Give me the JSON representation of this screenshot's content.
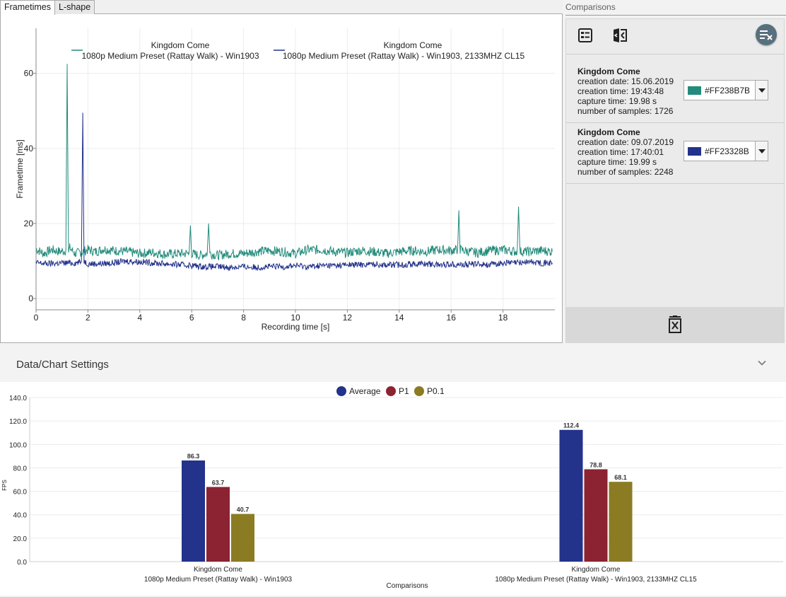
{
  "tabs": [
    {
      "label": "Frametimes",
      "active": true
    },
    {
      "label": "L-shape",
      "active": false
    }
  ],
  "comparisons_panel": {
    "title": "Comparisons",
    "entries": [
      {
        "name": "Kingdom Come",
        "creation_date": "creation date: 15.06.2019",
        "creation_time": "creation time: 19:43:48",
        "capture_time": "capture time: 19.98 s",
        "number_of_samples": "number of samples: 1726",
        "color_label": "#FF238B7B",
        "color_hex": "#238B7B"
      },
      {
        "name": "Kingdom Come",
        "creation_date": "creation date: 09.07.2019",
        "creation_time": "creation time: 17:40:01",
        "capture_time": "capture time: 19.99 s",
        "number_of_samples": "number of samples: 2248",
        "color_label": "#FF23328B",
        "color_hex": "#23328B"
      }
    ]
  },
  "settings": {
    "title": "Data/Chart Settings"
  },
  "chart_data": [
    {
      "type": "line",
      "xlabel": "Recording time [s]",
      "ylabel": "Frametime [ms]",
      "xlim": [
        0,
        20
      ],
      "ylim": [
        -3,
        72
      ],
      "xticks": [
        0,
        2,
        4,
        6,
        8,
        10,
        12,
        14,
        16,
        18
      ],
      "yticks": [
        0,
        20,
        40,
        60
      ],
      "grid": true,
      "legend_position": "top",
      "series": [
        {
          "name": "Kingdom Come",
          "subtitle": "1080p Medium Preset (Rattay Walk) - Win1903",
          "color": "#238B7B",
          "x": [
            0,
            0.3,
            0.6,
            0.9,
            1.15,
            1.2,
            1.25,
            1.3,
            1.5,
            1.8,
            2.0,
            2.3,
            2.6,
            3.0,
            3.5,
            4.0,
            4.5,
            5.0,
            5.5,
            5.9,
            5.95,
            6.0,
            6.3,
            6.6,
            6.65,
            6.7,
            7.0,
            7.5,
            8.0,
            8.5,
            9.0,
            9.5,
            10.0,
            10.5,
            11.0,
            11.5,
            12.0,
            12.5,
            13.0,
            13.5,
            14.0,
            14.5,
            15.0,
            15.5,
            16.0,
            16.25,
            16.3,
            16.35,
            16.7,
            17.0,
            17.5,
            18.0,
            18.5,
            18.55,
            18.6,
            18.65,
            19.0,
            19.5,
            19.9
          ],
          "values": [
            13.2,
            12.0,
            13.0,
            12.5,
            12.8,
            62.5,
            12.5,
            13.5,
            12.0,
            12.5,
            13.0,
            12.5,
            13.2,
            12.8,
            12.5,
            12.0,
            12.3,
            11.8,
            12.0,
            12.0,
            19.5,
            12.0,
            11.5,
            12.0,
            20.0,
            12.0,
            11.5,
            12.0,
            12.0,
            12.5,
            12.8,
            12.5,
            12.0,
            13.0,
            13.0,
            12.5,
            12.2,
            12.8,
            12.5,
            12.0,
            12.5,
            12.8,
            12.5,
            13.0,
            12.8,
            13.0,
            23.5,
            13.0,
            12.5,
            12.2,
            12.8,
            13.0,
            12.5,
            13.0,
            24.5,
            12.5,
            12.5,
            12.8,
            12.5
          ]
        },
        {
          "name": "Kingdom Come",
          "subtitle": "1080p Medium Preset (Rattay Walk) - Win1903, 2133MHZ CL15",
          "color": "#23328B",
          "x": [
            0,
            0.5,
            1.0,
            1.5,
            1.75,
            1.8,
            1.85,
            2.0,
            2.5,
            3.0,
            3.5,
            4.0,
            4.5,
            5.0,
            5.5,
            6.0,
            6.5,
            7.0,
            7.5,
            8.0,
            8.5,
            9.0,
            9.5,
            10.0,
            10.5,
            11.0,
            11.5,
            12.0,
            12.5,
            13.0,
            13.5,
            14.0,
            14.5,
            15.0,
            15.5,
            16.0,
            16.5,
            17.0,
            17.5,
            18.0,
            18.5,
            19.0,
            19.5,
            19.9
          ],
          "values": [
            9.5,
            9.3,
            9.5,
            9.5,
            9.8,
            49.5,
            10.0,
            9.3,
            9.3,
            9.5,
            10.0,
            9.8,
            9.5,
            9.3,
            9.0,
            8.8,
            8.5,
            8.5,
            8.3,
            8.5,
            8.3,
            8.5,
            8.5,
            8.8,
            8.5,
            8.8,
            8.8,
            9.0,
            9.0,
            9.2,
            9.0,
            9.0,
            9.2,
            9.3,
            9.0,
            9.2,
            9.0,
            9.3,
            9.0,
            9.5,
            9.5,
            9.8,
            9.5,
            9.5
          ]
        }
      ]
    },
    {
      "type": "bar",
      "title": "",
      "xlabel": "Comparisons",
      "ylabel": "FPS",
      "ylim": [
        0,
        140
      ],
      "yticks": [
        "0.0",
        "20.0",
        "40.0",
        "60.0",
        "80.0",
        "100.0",
        "120.0",
        "140.0"
      ],
      "legend_position": "top",
      "categories": [
        {
          "line1": "Kingdom Come",
          "line2": "1080p Medium Preset (Rattay Walk) - Win1903"
        },
        {
          "line1": "Kingdom Come",
          "line2": "1080p Medium Preset (Rattay Walk) - Win1903, 2133MHZ CL15"
        }
      ],
      "series": [
        {
          "name": "Average",
          "color": "#23328B",
          "values": [
            86.3,
            112.4
          ]
        },
        {
          "name": "P1",
          "color": "#8B2332",
          "values": [
            63.7,
            78.8
          ]
        },
        {
          "name": "P0.1",
          "color": "#8B7B23",
          "values": [
            40.7,
            68.1
          ]
        }
      ]
    }
  ]
}
